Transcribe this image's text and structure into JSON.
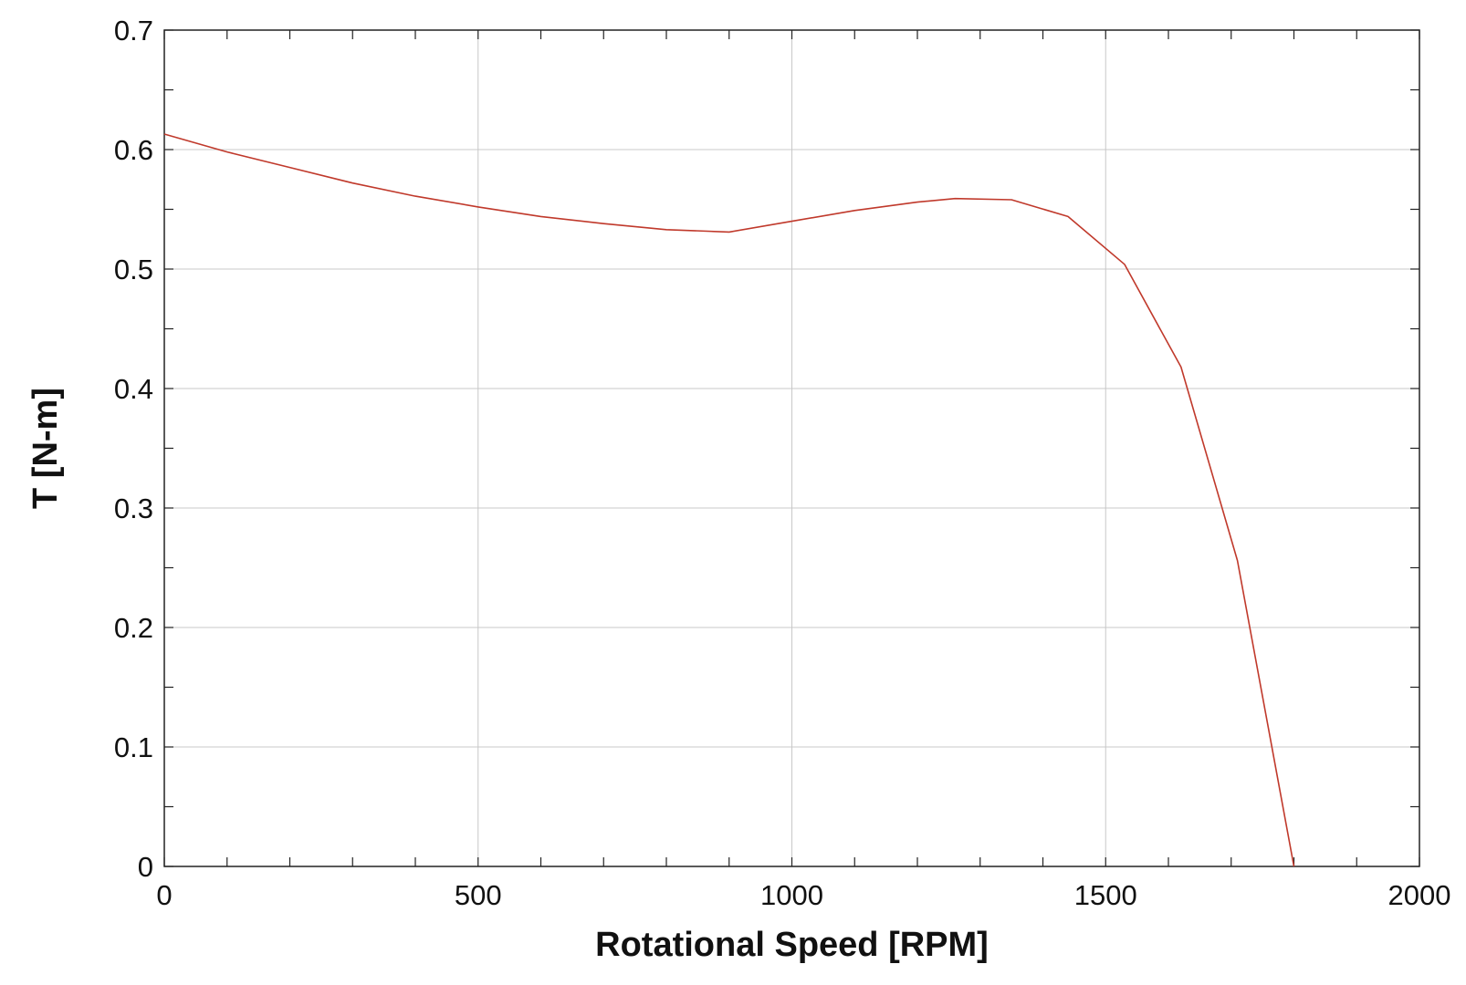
{
  "chart_data": {
    "type": "line",
    "title": "",
    "xlabel": "Rotational Speed  [RPM]",
    "ylabel": "T  [N-m]",
    "xlim": [
      0,
      2000
    ],
    "ylim": [
      0,
      0.7
    ],
    "x_ticks": [
      0,
      500,
      1000,
      1500,
      2000
    ],
    "y_ticks": [
      0,
      0.1,
      0.2,
      0.3,
      0.4,
      0.5,
      0.6,
      0.7
    ],
    "x_tick_labels": [
      "0",
      "500",
      "1000",
      "1500",
      "2000"
    ],
    "y_tick_labels": [
      "0",
      "0.1",
      "0.2",
      "0.3",
      "0.4",
      "0.5",
      "0.6",
      "0.7"
    ],
    "x_minor_step": 100,
    "y_minor_step": 0.05,
    "grid": true,
    "legend": "none",
    "series": [
      {
        "color": "#c0392b",
        "x": [
          0,
          100,
          200,
          300,
          400,
          500,
          600,
          700,
          800,
          900,
          1000,
          1100,
          1200,
          1260,
          1350,
          1440,
          1530,
          1620,
          1710,
          1800
        ],
        "y": [
          0.613,
          0.598,
          0.585,
          0.572,
          0.561,
          0.552,
          0.544,
          0.538,
          0.533,
          0.531,
          0.54,
          0.549,
          0.556,
          0.559,
          0.558,
          0.544,
          0.504,
          0.418,
          0.256,
          0.0
        ]
      }
    ]
  }
}
